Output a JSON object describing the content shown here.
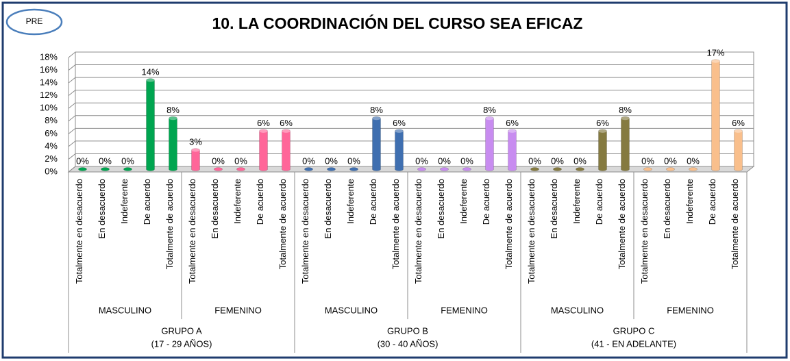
{
  "badge": "PRE",
  "chart_data": {
    "type": "bar",
    "title": "10. LA COORDINACIÓN DEL CURSO SEA EFICAZ",
    "categories": [
      "Totalmente en desacuerdo",
      "En desacuerdo",
      "Indeferente",
      "De acuerdo",
      "Totalmente de acuerdo"
    ],
    "ylim": [
      0,
      18
    ],
    "yticks": [
      {
        "value": 0,
        "label": "0%"
      },
      {
        "value": 2,
        "label": "2%"
      },
      {
        "value": 4,
        "label": "4%"
      },
      {
        "value": 6,
        "label": "6%"
      },
      {
        "value": 8,
        "label": "8%"
      },
      {
        "value": 10,
        "label": "10%"
      },
      {
        "value": 12,
        "label": "12%"
      },
      {
        "value": 14,
        "label": "14%"
      },
      {
        "value": 16,
        "label": "16%"
      },
      {
        "value": 18,
        "label": "18%"
      }
    ],
    "grid": true,
    "groups": [
      {
        "label": [
          "GRUPO A",
          "(17 - 29 AÑOS)"
        ],
        "series": [
          {
            "name": "MASCULINO",
            "color": "#00a550",
            "values": [
              0,
              0,
              0,
              14,
              8
            ],
            "value_labels": [
              "0%",
              "0%",
              "0%",
              "14%",
              "8%"
            ]
          },
          {
            "name": "FEMENINO",
            "color": "#ff6699",
            "values": [
              3,
              0,
              0,
              6,
              6
            ],
            "value_labels": [
              "3%",
              "0%",
              "0%",
              "6%",
              "6%"
            ]
          }
        ]
      },
      {
        "label": [
          "GRUPO B",
          "(30 - 40 AÑOS)"
        ],
        "series": [
          {
            "name": "MASCULINO",
            "color": "#3f6fb0",
            "values": [
              0,
              0,
              0,
              8,
              6
            ],
            "value_labels": [
              "0%",
              "0%",
              "0%",
              "8%",
              "6%"
            ]
          },
          {
            "name": "FEMENINO",
            "color": "#c88cf0",
            "values": [
              0,
              0,
              0,
              8,
              6
            ],
            "value_labels": [
              "0%",
              "0%",
              "0%",
              "8%",
              "6%"
            ]
          }
        ]
      },
      {
        "label": [
          "GRUPO C",
          "(41 -  EN ADELANTE)"
        ],
        "series": [
          {
            "name": "MASCULINO",
            "color": "#857a40",
            "values": [
              0,
              0,
              0,
              6,
              8
            ],
            "value_labels": [
              "0%",
              "0%",
              "0%",
              "6%",
              "8%"
            ]
          },
          {
            "name": "FEMENINO",
            "color": "#f9bf8c",
            "values": [
              0,
              0,
              0,
              17,
              6
            ],
            "value_labels": [
              "0%",
              "0%",
              "0%",
              "17%",
              "6%"
            ]
          }
        ]
      }
    ]
  }
}
